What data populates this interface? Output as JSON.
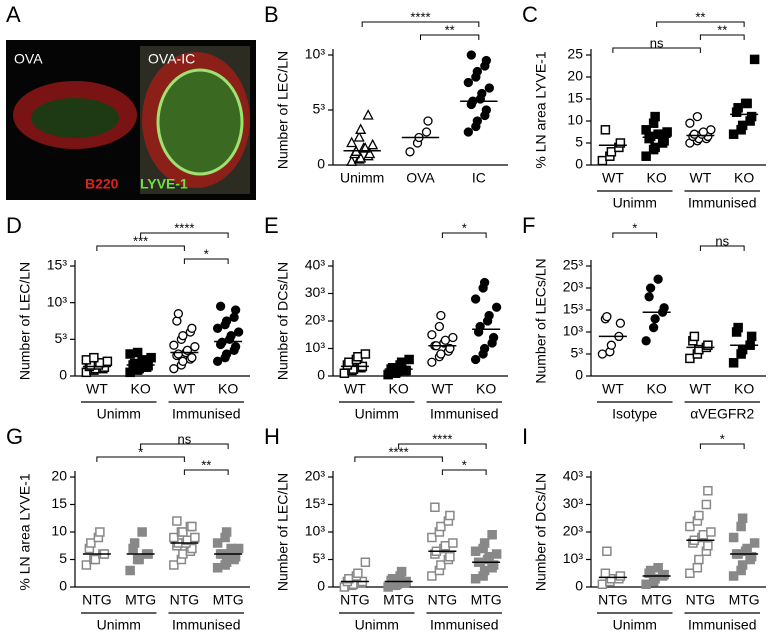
{
  "panel_a": {
    "panel": "A",
    "left_label": "OVA",
    "right_label": "OVA-IC",
    "stain_red": "B220",
    "stain_green": "LYVE-1"
  },
  "chart_data": [
    {
      "panel": "B",
      "type": "dot",
      "ylabel": "Number of LEC/LN",
      "categories": [
        "Unimm",
        "OVA",
        "IC"
      ],
      "group_labels": [],
      "markers": [
        "triangle-open",
        "circle-open",
        "circle-filled"
      ],
      "color": "#000000",
      "points": [
        [
          0.3,
          0.5,
          0.6,
          0.8,
          1,
          1,
          1.2,
          1.5,
          1.5,
          1.8,
          2,
          2.5,
          3.2,
          4.5
        ],
        [
          1.2,
          2,
          2.5,
          3,
          4
        ],
        [
          3,
          3.5,
          4,
          4.5,
          5,
          5.5,
          5.8,
          6,
          6.5,
          7,
          7.5,
          8,
          8.5,
          9,
          9.5,
          10
        ]
      ],
      "means": [
        1.3,
        2.5,
        5.8
      ],
      "ylim": [
        0,
        10
      ],
      "yticks": [
        0,
        {
          "value": 5,
          "label": "5³"
        },
        {
          "value": 10,
          "label": "10³"
        }
      ],
      "brackets": [
        {
          "from": 0,
          "to": 2,
          "label": "****"
        },
        {
          "from": 1,
          "to": 2,
          "label": "**"
        }
      ]
    },
    {
      "panel": "C",
      "type": "dot",
      "ylabel": "% LN area LYVE-1",
      "categories": [
        "WT",
        "KO",
        "WT",
        "KO"
      ],
      "group_labels": [
        "Unimm",
        "Immunised"
      ],
      "markers": [
        "square-open",
        "square-filled",
        "circle-open",
        "square-filled"
      ],
      "color": "#000000",
      "points": [
        [
          1,
          2,
          3,
          4,
          5,
          8
        ],
        [
          2,
          3.5,
          4,
          5,
          5.5,
          6,
          6.5,
          7,
          7,
          7.5,
          8,
          9.5,
          11
        ],
        [
          5,
          5.5,
          6,
          6,
          6.5,
          6.5,
          7,
          7,
          7.5,
          8,
          9.5,
          11
        ],
        [
          7,
          8,
          9,
          10,
          11,
          12,
          13,
          14,
          14,
          24
        ]
      ],
      "means": [
        4.5,
        6.3,
        6.7,
        11.5
      ],
      "ylim": [
        0,
        25
      ],
      "yticks": [
        0,
        5,
        10,
        15,
        20,
        25
      ],
      "brackets": [
        {
          "from": 1,
          "to": 3,
          "label": "**"
        },
        {
          "from": 2,
          "to": 3,
          "label": "**"
        },
        {
          "from": 0,
          "to": 2,
          "label": "ns"
        }
      ]
    },
    {
      "panel": "D",
      "type": "dot",
      "ylabel": "Number of LEC/LN",
      "categories": [
        "WT",
        "KO",
        "WT",
        "KO"
      ],
      "group_labels": [
        "Unimm",
        "Immunised"
      ],
      "markers": [
        "square-open",
        "square-filled",
        "circle-open",
        "circle-filled"
      ],
      "color": "#000000",
      "points": [
        [
          0.5,
          0.8,
          1,
          1,
          1.2,
          1.3,
          1.5,
          1.5,
          1.8,
          2,
          2.2,
          2.5
        ],
        [
          0.5,
          0.8,
          1,
          1.2,
          1.4,
          1.5,
          1.7,
          2,
          2.2,
          2.5,
          3,
          3.2
        ],
        [
          1,
          1.5,
          2,
          2.3,
          2.5,
          2.8,
          3,
          3.2,
          3.5,
          4,
          4.2,
          5,
          5.5,
          6,
          6.5,
          7.5,
          8.5
        ],
        [
          2,
          2.5,
          3,
          3.5,
          4,
          4.3,
          4.6,
          5,
          5.5,
          6,
          6.5,
          7,
          7.5,
          8,
          9,
          9.5
        ]
      ],
      "means": [
        1.3,
        1.5,
        3.2,
        4.7
      ],
      "ylim": [
        0,
        15
      ],
      "yticks": [
        0,
        {
          "value": 5,
          "label": "5³"
        },
        {
          "value": 10,
          "label": "10³"
        },
        {
          "value": 15,
          "label": "15³"
        }
      ],
      "brackets": [
        {
          "from": 1,
          "to": 3,
          "label": "****"
        },
        {
          "from": 0,
          "to": 2,
          "label": "***"
        },
        {
          "from": 2,
          "to": 3,
          "label": "*"
        }
      ]
    },
    {
      "panel": "E",
      "type": "dot",
      "ylabel": "Number of DCs/LN",
      "categories": [
        "WT",
        "KO",
        "WT",
        "KO"
      ],
      "group_labels": [
        "Unimm",
        "Immunised"
      ],
      "markers": [
        "square-open",
        "square-filled",
        "circle-open",
        "circle-filled"
      ],
      "color": "#000000",
      "points": [
        [
          1,
          2,
          2.5,
          3,
          3.5,
          4,
          5,
          6,
          7,
          8
        ],
        [
          0.5,
          1,
          1.5,
          2,
          2,
          2.5,
          3,
          4,
          5,
          6
        ],
        [
          5,
          7,
          8,
          9,
          10,
          11,
          11,
          12,
          13,
          14,
          15,
          18,
          22
        ],
        [
          6,
          8,
          10,
          12,
          14,
          16,
          18,
          20,
          22,
          25,
          28,
          32,
          34
        ]
      ],
      "means": [
        3.5,
        2.5,
        11,
        17
      ],
      "ylim": [
        0,
        40
      ],
      "yticks": [
        0,
        {
          "value": 10,
          "label": "10³"
        },
        {
          "value": 20,
          "label": "20³"
        },
        {
          "value": 30,
          "label": "30³"
        },
        {
          "value": 40,
          "label": "40³"
        }
      ],
      "brackets": [
        {
          "from": 2,
          "to": 3,
          "label": "*"
        }
      ]
    },
    {
      "panel": "F",
      "type": "dot",
      "ylabel": "Number of LECs/LN",
      "categories": [
        "WT",
        "KO",
        "WT",
        "KO"
      ],
      "group_labels": [
        "Isotype",
        "αVEGFR2"
      ],
      "markers": [
        "circle-open",
        "circle-filled",
        "square-open",
        "square-filled"
      ],
      "color": "#000000",
      "points": [
        [
          5,
          5.5,
          7,
          9,
          12,
          13,
          13.5
        ],
        [
          8,
          11,
          13,
          14.5,
          15.5,
          18,
          20,
          22
        ],
        [
          4,
          5,
          6,
          6.5,
          7,
          8,
          9
        ],
        [
          3,
          5,
          6,
          7,
          9,
          10,
          11
        ]
      ],
      "means": [
        9,
        14.5,
        6.5,
        7
      ],
      "ylim": [
        0,
        25
      ],
      "yticks": [
        0,
        {
          "value": 5,
          "label": "5³"
        },
        {
          "value": 10,
          "label": "10³"
        },
        {
          "value": 15,
          "label": "15³"
        },
        {
          "value": 20,
          "label": "20³"
        },
        {
          "value": 25,
          "label": "25³"
        }
      ],
      "brackets": [
        {
          "from": 0,
          "to": 1,
          "label": "*"
        },
        {
          "from": 2,
          "to": 3,
          "label": "ns"
        }
      ]
    },
    {
      "panel": "G",
      "type": "dot",
      "ylabel": "% LN area LYVE-1",
      "categories": [
        "NTG",
        "MTG",
        "NTG",
        "MTG"
      ],
      "group_labels": [
        "Unimm",
        "Immunised"
      ],
      "markers": [
        "square-open",
        "square-filled",
        "square-open",
        "square-filled"
      ],
      "color": "#888888",
      "points": [
        [
          4,
          5,
          5,
          6,
          6,
          7,
          8,
          9,
          10
        ],
        [
          3,
          5,
          5,
          6,
          6,
          7,
          8,
          10
        ],
        [
          4,
          5,
          6,
          6.5,
          7,
          7.5,
          8,
          8,
          8.5,
          9,
          9,
          10,
          10,
          11,
          11,
          12
        ],
        [
          3.5,
          4,
          4.5,
          5,
          5.5,
          6,
          6,
          6,
          7,
          7,
          8,
          9,
          10
        ]
      ],
      "means": [
        6,
        6,
        8,
        6
      ],
      "ylim": [
        0,
        20
      ],
      "yticks": [
        0,
        5,
        10,
        15,
        20
      ],
      "brackets": [
        {
          "from": 1,
          "to": 3,
          "label": "ns"
        },
        {
          "from": 0,
          "to": 2,
          "label": "*"
        },
        {
          "from": 2,
          "to": 3,
          "label": "**"
        }
      ]
    },
    {
      "panel": "H",
      "type": "dot",
      "ylabel": "Number of LEC/LN",
      "categories": [
        "NTG",
        "MTG",
        "NTG",
        "MTG"
      ],
      "group_labels": [
        "Unimm",
        "Immunised"
      ],
      "markers": [
        "square-open",
        "square-filled",
        "square-open",
        "square-filled"
      ],
      "color": "#888888",
      "points": [
        [
          0,
          0.3,
          0.5,
          0.8,
          1,
          1,
          1.5,
          2,
          2.5,
          4.5
        ],
        [
          0,
          0.3,
          0.5,
          0.8,
          1,
          1.2,
          1.5,
          2,
          2.8
        ],
        [
          2,
          3,
          4,
          5,
          5.5,
          6,
          6.5,
          7,
          7.5,
          8,
          9,
          10,
          11,
          12,
          13,
          14.5
        ],
        [
          1.5,
          2,
          3,
          3.5,
          4,
          4.5,
          4.5,
          5,
          5.5,
          6,
          6.5,
          7,
          8,
          9.5
        ]
      ],
      "means": [
        1,
        1,
        6.5,
        4.5
      ],
      "ylim": [
        0,
        20
      ],
      "yticks": [
        0,
        {
          "value": 5,
          "label": "5³"
        },
        {
          "value": 10,
          "label": "10³"
        },
        {
          "value": 15,
          "label": "15³"
        },
        {
          "value": 20,
          "label": "20³"
        }
      ],
      "brackets": [
        {
          "from": 1,
          "to": 3,
          "label": "****"
        },
        {
          "from": 0,
          "to": 2,
          "label": "****"
        },
        {
          "from": 2,
          "to": 3,
          "label": "*"
        }
      ]
    },
    {
      "panel": "I",
      "type": "dot",
      "ylabel": "Number of DCs/LN",
      "categories": [
        "NTG",
        "MTG",
        "NTG",
        "MTG"
      ],
      "group_labels": [
        "Unimm",
        "Immunised"
      ],
      "markers": [
        "square-open",
        "square-filled",
        "square-open",
        "square-filled"
      ],
      "color": "#888888",
      "points": [
        [
          1,
          2,
          3,
          3,
          4,
          5,
          13
        ],
        [
          1,
          2,
          3,
          4,
          4.5,
          5,
          6,
          7
        ],
        [
          5,
          7,
          10,
          13,
          15,
          16,
          17,
          18,
          19,
          20,
          22,
          24,
          26,
          30,
          35
        ],
        [
          4,
          6,
          8,
          10,
          11,
          12,
          12,
          13,
          14,
          16,
          18,
          22,
          25
        ]
      ],
      "means": [
        3.5,
        4,
        17,
        12
      ],
      "ylim": [
        0,
        40
      ],
      "yticks": [
        0,
        {
          "value": 10,
          "label": "10³"
        },
        {
          "value": 20,
          "label": "20³"
        },
        {
          "value": 30,
          "label": "30³"
        },
        {
          "value": 40,
          "label": "40³"
        }
      ],
      "brackets": [
        {
          "from": 2,
          "to": 3,
          "label": "*"
        }
      ]
    }
  ]
}
